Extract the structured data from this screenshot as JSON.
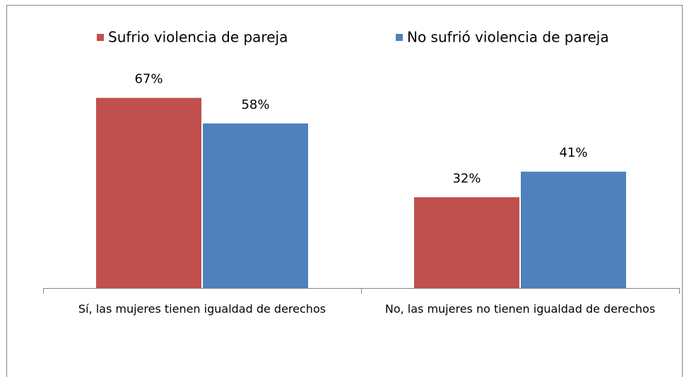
{
  "chart_data": {
    "type": "bar",
    "categories": [
      "Sí, las mujeres tienen igualdad de derechos",
      "No, las mujeres no tienen igualdad de derechos"
    ],
    "series": [
      {
        "name": "Sufrio violencia de pareja",
        "color": "#c0504d",
        "values": [
          67,
          32
        ],
        "value_labels": [
          "67%",
          "32%"
        ]
      },
      {
        "name": "No sufrió violencia de pareja",
        "color": "#4f81bd",
        "values": [
          58,
          41
        ],
        "value_labels": [
          "58%",
          "41%"
        ]
      }
    ],
    "legend": "top"
  }
}
